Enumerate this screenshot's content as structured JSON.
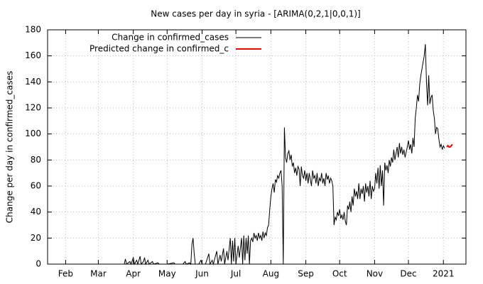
{
  "chart_data": {
    "type": "line",
    "title": "New cases per day in syria -  [ARIMA(0,2,1|0,0,1)]",
    "y_label": "Change per day in confirmed_cases",
    "xlim": [
      -16,
      355
    ],
    "ylim": [
      0,
      180
    ],
    "xticks": [
      {
        "value": 0,
        "label": "Feb"
      },
      {
        "value": 29,
        "label": "Mar"
      },
      {
        "value": 60,
        "label": "Apr"
      },
      {
        "value": 90,
        "label": "May"
      },
      {
        "value": 121,
        "label": "Jun"
      },
      {
        "value": 151,
        "label": "Jul"
      },
      {
        "value": 182,
        "label": "Aug"
      },
      {
        "value": 213,
        "label": "Sep"
      },
      {
        "value": 243,
        "label": "Oct"
      },
      {
        "value": 274,
        "label": "Nov"
      },
      {
        "value": 304,
        "label": "Dec"
      },
      {
        "value": 335,
        "label": "2021"
      }
    ],
    "yticks": [
      0,
      20,
      40,
      60,
      80,
      100,
      120,
      140,
      160,
      180
    ],
    "grid": true,
    "legend": "top-left",
    "series": [
      {
        "name": "Change in confirmed_cases",
        "color": "#000000",
        "x": [
          50,
          52,
          53,
          54,
          57,
          58,
          60,
          61,
          63,
          64,
          66,
          67,
          69,
          70,
          71,
          73,
          74,
          77,
          78,
          82,
          83,
          90,
          96,
          97,
          104,
          106,
          107,
          110,
          111,
          112,
          113,
          114,
          115,
          118,
          120,
          121,
          124,
          127,
          128,
          130,
          131,
          134,
          135,
          137,
          138,
          140,
          141,
          143,
          144,
          146,
          147,
          148,
          149,
          150,
          151,
          153,
          154,
          156,
          157,
          158,
          159,
          160,
          161,
          162,
          163,
          164,
          165,
          166,
          167,
          168,
          169,
          170,
          171,
          172,
          173,
          174,
          175,
          176,
          177,
          178,
          179,
          180,
          181,
          182,
          183,
          184,
          185,
          186,
          187,
          188,
          189,
          190,
          191,
          192,
          193,
          194,
          195,
          196,
          197,
          198,
          199,
          200,
          201,
          202,
          203,
          204,
          205,
          206,
          207,
          208,
          209,
          210,
          211,
          212,
          213,
          214,
          215,
          216,
          217,
          218,
          219,
          220,
          221,
          222,
          223,
          224,
          225,
          226,
          227,
          228,
          229,
          230,
          231,
          232,
          233,
          234,
          235,
          236,
          237,
          238,
          239,
          240,
          241,
          242,
          243,
          244,
          245,
          246,
          247,
          248,
          249,
          250,
          251,
          252,
          253,
          254,
          255,
          256,
          257,
          258,
          259,
          260,
          261,
          262,
          263,
          264,
          265,
          266,
          267,
          268,
          269,
          270,
          271,
          272,
          273,
          274,
          275,
          276,
          277,
          278,
          279,
          280,
          281,
          282,
          283,
          284,
          285,
          286,
          287,
          288,
          289,
          290,
          291,
          292,
          293,
          294,
          295,
          296,
          297,
          298,
          299,
          300,
          301,
          302,
          303,
          304,
          305,
          306,
          307,
          308,
          309,
          310,
          311,
          312,
          313,
          314,
          315,
          316,
          317,
          318,
          319,
          320,
          321,
          322,
          323,
          324,
          325,
          326,
          327,
          328,
          329,
          330,
          331,
          332,
          333,
          334,
          335,
          336
        ],
        "values": [
          0,
          0,
          4,
          0,
          2,
          0,
          5,
          0,
          3,
          0,
          6,
          0,
          2,
          5,
          0,
          3,
          0,
          2,
          0,
          1,
          0,
          0,
          1,
          0,
          0,
          2,
          0,
          1,
          0,
          15,
          20,
          8,
          0,
          0,
          3,
          0,
          0,
          8,
          0,
          3,
          0,
          10,
          0,
          7,
          2,
          12,
          0,
          10,
          3,
          20,
          0,
          18,
          2,
          20,
          0,
          14,
          5,
          20,
          0,
          22,
          3,
          20,
          8,
          22,
          0,
          18,
          20,
          17,
          24,
          20,
          22,
          18,
          24,
          20,
          22,
          18,
          25,
          20,
          24,
          22,
          28,
          30,
          42,
          52,
          58,
          62,
          55,
          65,
          63,
          68,
          66,
          70,
          72,
          60,
          0,
          105,
          82,
          78,
          85,
          87,
          80,
          84,
          75,
          78,
          70,
          74,
          68,
          75,
          73,
          60,
          75,
          68,
          66,
          72,
          64,
          70,
          62,
          70,
          65,
          60,
          72,
          66,
          68,
          62,
          70,
          60,
          66,
          64,
          70,
          62,
          66,
          60,
          70,
          65,
          68,
          62,
          66,
          64,
          60,
          30,
          36,
          34,
          40,
          37,
          42,
          35,
          38,
          34,
          40,
          33,
          30,
          45,
          42,
          48,
          40,
          52,
          45,
          58,
          52,
          56,
          50,
          62,
          50,
          58,
          54,
          60,
          48,
          62,
          55,
          60,
          52,
          64,
          50,
          60,
          56,
          58,
          70,
          62,
          74,
          58,
          76,
          60,
          72,
          45,
          78,
          72,
          76,
          70,
          80,
          75,
          82,
          78,
          88,
          80,
          85,
          90,
          82,
          93,
          85,
          90,
          84,
          88,
          82,
          86,
          90,
          95,
          88,
          92,
          85,
          97,
          90,
          112,
          120,
          130,
          125,
          138,
          145,
          150,
          155,
          160,
          169,
          140,
          122,
          145,
          123,
          128,
          130,
          118,
          112,
          100,
          105,
          104,
          96,
          90,
          92,
          88,
          91,
          89
        ]
      },
      {
        "name": "Predicted change in confirmed_c",
        "color": "#ff0000",
        "x": [
          338,
          339,
          340,
          341,
          342,
          343
        ],
        "values": [
          90,
          91,
          90,
          90,
          91,
          92
        ]
      }
    ]
  }
}
